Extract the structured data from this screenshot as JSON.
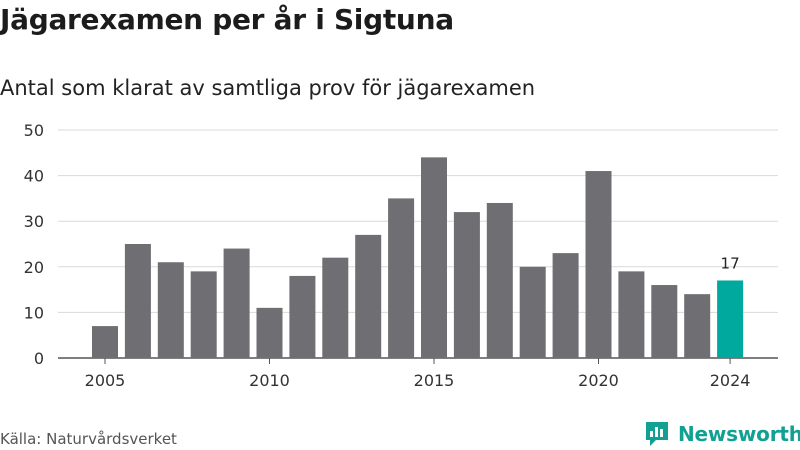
{
  "header": {
    "title": "Jägarexamen per år i Sigtuna",
    "subtitle": "Antal som klarat av samtliga prov för jägarexamen"
  },
  "footer": {
    "source": "Källa: Naturvårdsverket",
    "brand": "Newsworthy",
    "brand_icon": "bar-chart-bubble-icon"
  },
  "colors": {
    "bar": "#6e6e73",
    "highlight": "#00a99d",
    "grid": "#d9d9d9",
    "brand": "#11a193"
  },
  "chart_data": {
    "type": "bar",
    "title": "Jägarexamen per år i Sigtuna",
    "subtitle": "Antal som klarat av samtliga prov för jägarexamen",
    "xlabel": "",
    "ylabel": "",
    "x": [
      2005,
      2006,
      2007,
      2008,
      2009,
      2010,
      2011,
      2012,
      2013,
      2014,
      2015,
      2016,
      2017,
      2018,
      2019,
      2020,
      2021,
      2022,
      2023,
      2024
    ],
    "values": [
      7,
      25,
      21,
      19,
      24,
      11,
      18,
      22,
      27,
      35,
      44,
      32,
      34,
      20,
      23,
      41,
      19,
      16,
      14,
      17
    ],
    "highlight_index": 19,
    "highlight_label": "17",
    "ylim": [
      0,
      50
    ],
    "yticks": [
      0,
      10,
      20,
      30,
      40,
      50
    ],
    "xticks": [
      "2005",
      "2010",
      "2015",
      "2020",
      "2024"
    ],
    "grid": true
  }
}
